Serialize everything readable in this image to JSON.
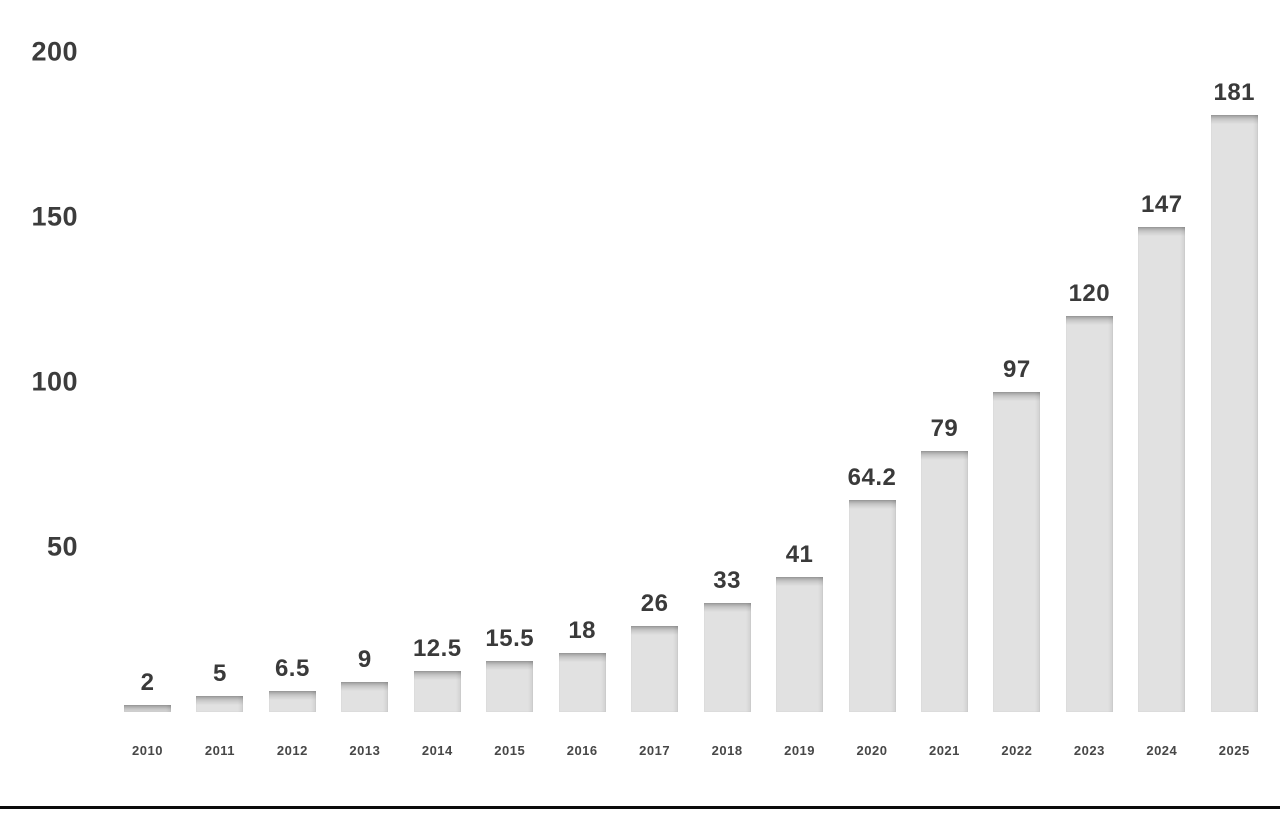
{
  "chart_data": {
    "type": "bar",
    "title": "",
    "xlabel": "",
    "ylabel": "",
    "categories": [
      "2010",
      "2011",
      "2012",
      "2013",
      "2014",
      "2015",
      "2016",
      "2017",
      "2018",
      "2019",
      "2020",
      "2021",
      "2022",
      "2023",
      "2024",
      "2025"
    ],
    "values": [
      2,
      5,
      6.5,
      9,
      12.5,
      15.5,
      18,
      26,
      33,
      41,
      64.2,
      79,
      97,
      120,
      147,
      181
    ],
    "bar_labels": [
      "2",
      "5",
      "6.5",
      "9",
      "12.5",
      "15.5",
      "18",
      "26",
      "33",
      "41",
      "64.2",
      "79",
      "97",
      "120",
      "147",
      "181"
    ],
    "y_ticks": [
      50,
      100,
      150,
      200
    ],
    "ylim": [
      0,
      200
    ],
    "grid": false,
    "legend": false,
    "bar_color": "#e1e1e1",
    "bar_top_shadow_color": "#a6a6a6",
    "value_label_color": "#3a3a3a",
    "axis_tick_color": "#3c3c3c",
    "x_tick_color": "#474747",
    "background_color": "#ffffff",
    "bottom_rule_color": "#0b0b0b"
  }
}
